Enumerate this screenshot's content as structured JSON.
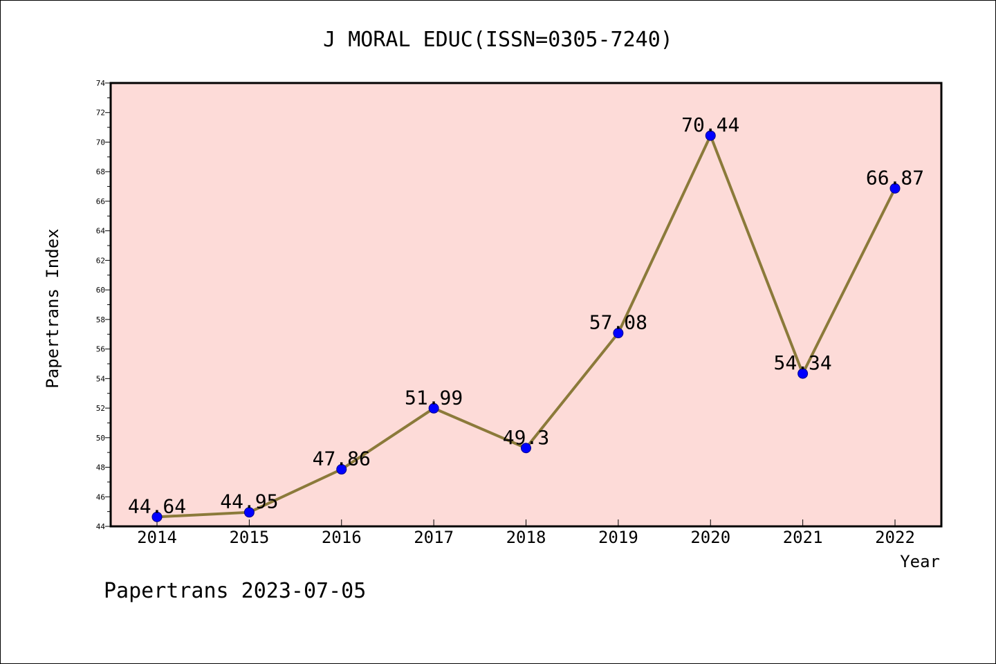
{
  "chart_data": {
    "type": "line",
    "title": "J MORAL EDUC(ISSN=0305-7240)",
    "xlabel": "Year",
    "ylabel": "Papertrans Index",
    "categories": [
      "2014",
      "2015",
      "2016",
      "2017",
      "2018",
      "2019",
      "2020",
      "2021",
      "2022"
    ],
    "series": [
      {
        "values": [
          44.64,
          44.95,
          47.86,
          51.99,
          49.3,
          57.08,
          70.44,
          54.34,
          66.87
        ],
        "labels": [
          "44.64",
          "44.95",
          "47.86",
          "51.99",
          "49.3",
          "57.08",
          "70.44",
          "54.34",
          "66.87"
        ]
      }
    ],
    "ylim": [
      44,
      74
    ],
    "yticks": [
      "44",
      "46",
      "48",
      "50",
      "52",
      "54",
      "56",
      "58",
      "60",
      "62",
      "64",
      "66",
      "68",
      "70",
      "72",
      "74"
    ],
    "grid": false,
    "plot_background": "#fddbd8",
    "line_color": "#8b7a3a",
    "marker_color": "#0000ff"
  },
  "footer": "Papertrans 2023-07-05"
}
